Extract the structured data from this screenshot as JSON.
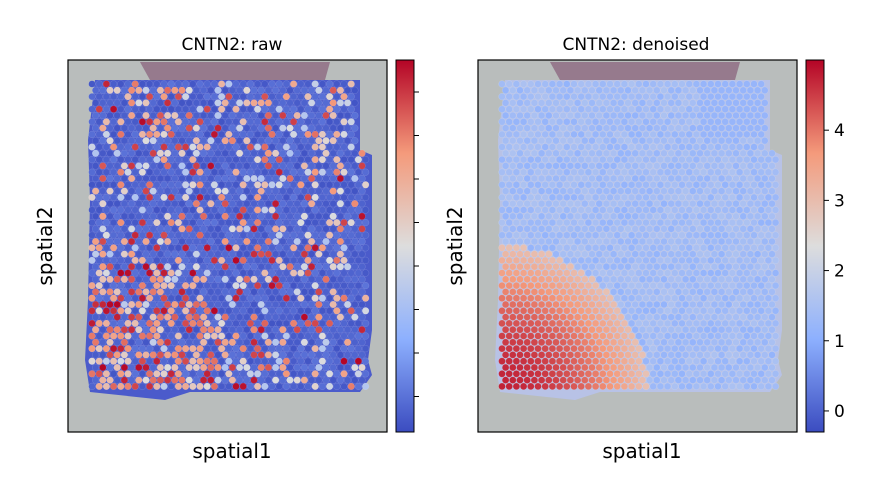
{
  "chart_data": [
    {
      "type": "heatmap",
      "title": "CNTN2: raw",
      "xlabel": "spatial1",
      "ylabel": "spatial2",
      "colormap": "coolwarm",
      "colorbar": {
        "ticks": [],
        "tick_count": 8
      },
      "pattern": "sparse high counts scattered over tissue, densest in lower-left region"
    },
    {
      "type": "heatmap",
      "title": "CNTN2: denoised",
      "xlabel": "spatial1",
      "ylabel": "spatial2",
      "colormap": "coolwarm",
      "colorbar": {
        "ticks": [
          0,
          1,
          2,
          3,
          4
        ],
        "range": [
          -0.3,
          5.0
        ]
      },
      "pattern": "smooth high expression (~4-5) in lower-left region, low (~1) elsewhere"
    }
  ],
  "colors": {
    "background": "#b9bdbc",
    "cmap_low": "#3b4cc0",
    "cmap_mid": "#dddddd",
    "cmap_high": "#b40426"
  }
}
